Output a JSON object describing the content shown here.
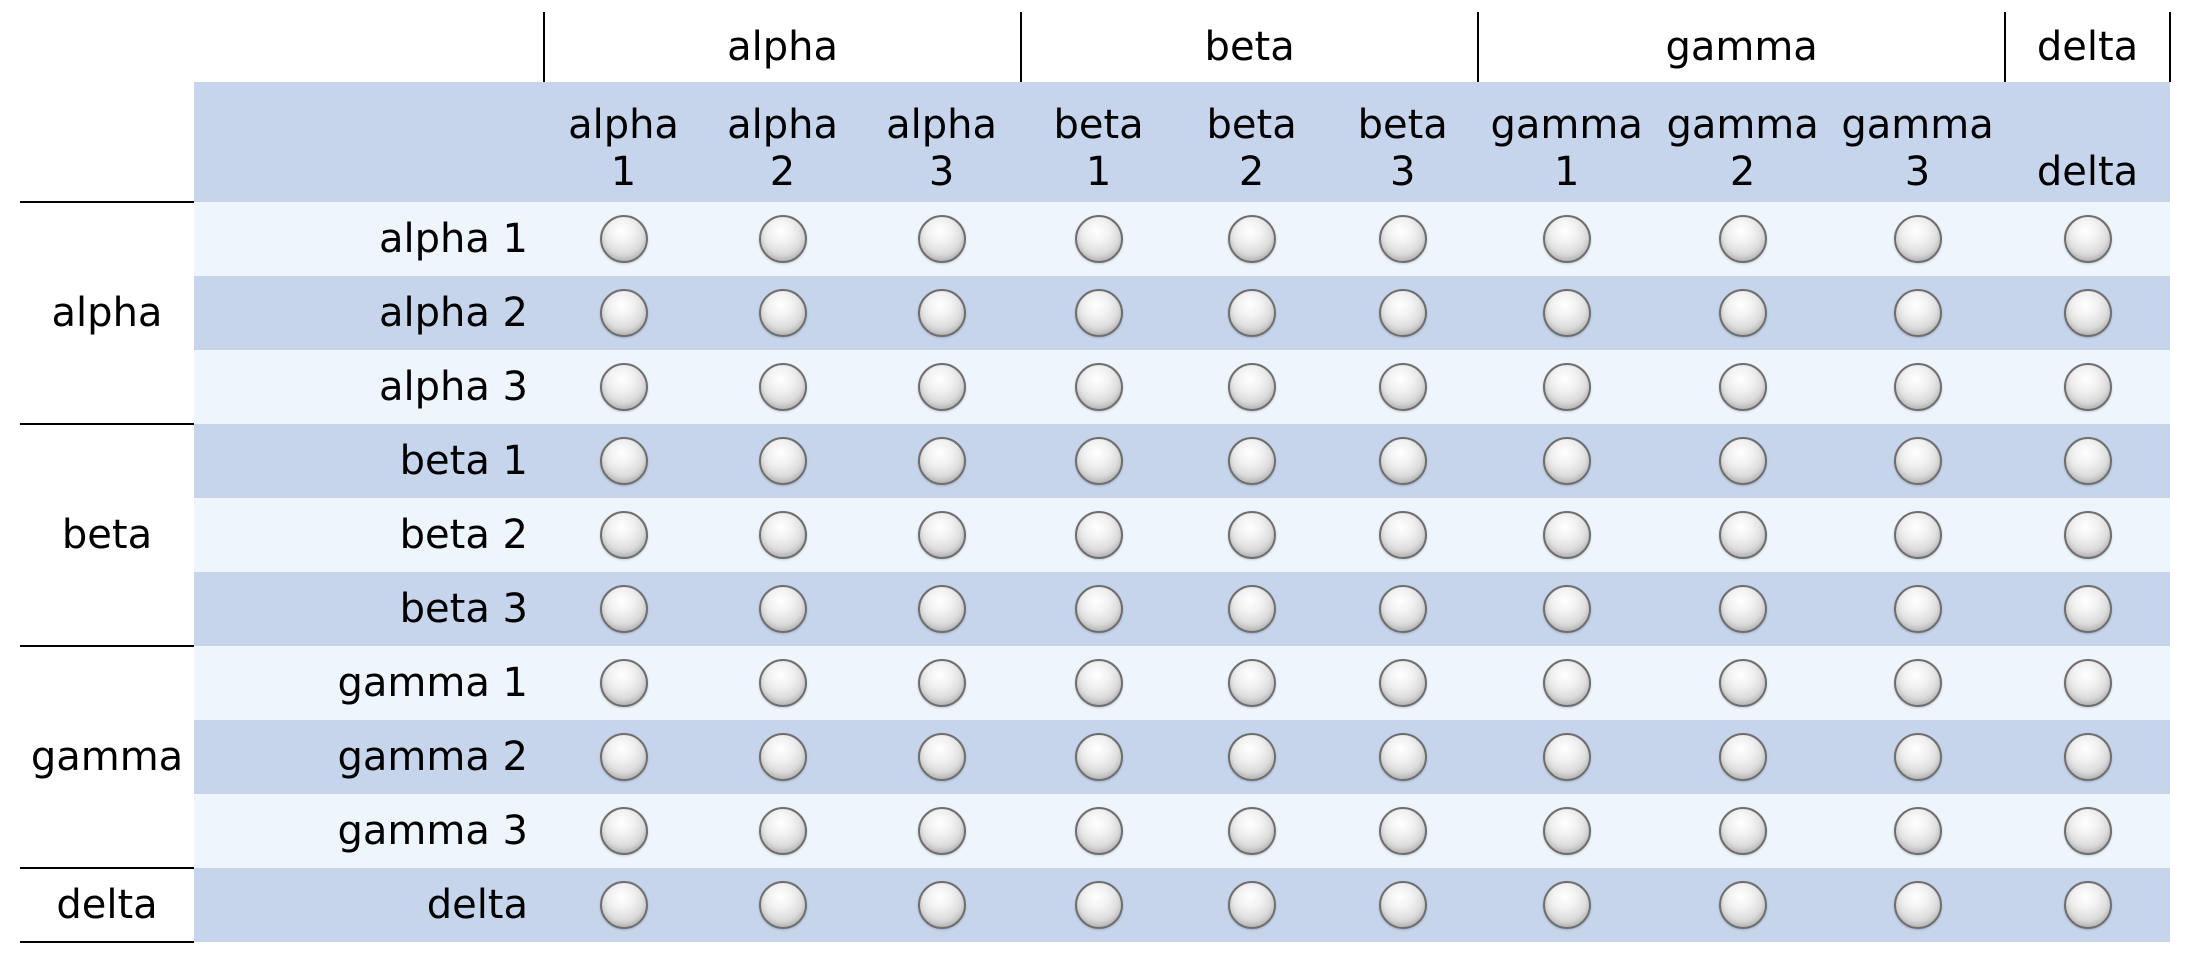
{
  "matrix": {
    "column_groups": [
      {
        "label": "alpha",
        "sub_columns": [
          {
            "text": "alpha\n1"
          },
          {
            "text": "alpha\n2"
          },
          {
            "text": "alpha\n3"
          }
        ]
      },
      {
        "label": "beta",
        "sub_columns": [
          {
            "text": "beta\n1"
          },
          {
            "text": "beta\n2"
          },
          {
            "text": "beta\n3"
          }
        ]
      },
      {
        "label": "gamma",
        "sub_columns": [
          {
            "text": "gamma\n1"
          },
          {
            "text": "gamma\n2"
          },
          {
            "text": "gamma\n3"
          }
        ]
      },
      {
        "label": "delta",
        "sub_columns": [
          {
            "text": "delta"
          }
        ]
      }
    ],
    "row_groups": [
      {
        "label": "alpha",
        "rows": [
          {
            "label": "alpha 1"
          },
          {
            "label": "alpha 2"
          },
          {
            "label": "alpha 3"
          }
        ]
      },
      {
        "label": "beta",
        "rows": [
          {
            "label": "beta 1"
          },
          {
            "label": "beta 2"
          },
          {
            "label": "beta 3"
          }
        ]
      },
      {
        "label": "gamma",
        "rows": [
          {
            "label": "gamma 1"
          },
          {
            "label": "gamma 2"
          },
          {
            "label": "gamma 3"
          }
        ]
      },
      {
        "label": "delta",
        "rows": [
          {
            "label": "delta"
          }
        ]
      }
    ],
    "colors": {
      "band_dark": "#c6d5ec",
      "band_light": "#eff5fd",
      "header_band": "#c6d5ec"
    }
  }
}
